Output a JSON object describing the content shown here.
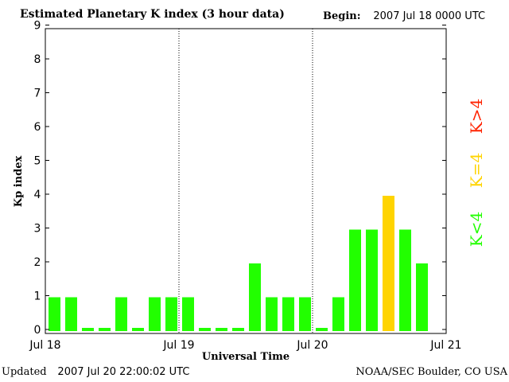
{
  "header": {
    "title": "Estimated Planetary K index (3 hour data)",
    "begin_label": "Begin:",
    "begin_value": "2007 Jul 18 0000 UTC"
  },
  "footer": {
    "updated_label": "Updated",
    "updated_value": "2007 Jul 20 22:00:02 UTC",
    "credit": "NOAA/SEC Boulder, CO USA"
  },
  "colors": {
    "low": "#22ff00",
    "storm_threshold": "#ffd400",
    "high": "#ff2200",
    "frame": "#000000"
  },
  "legend": [
    {
      "label": "K<4",
      "color": "#22ff00"
    },
    {
      "label": "K=4",
      "color": "#ffd400"
    },
    {
      "label": "K>4",
      "color": "#ff2200"
    }
  ],
  "chart_data": {
    "type": "bar",
    "title": "Estimated Planetary K index (3 hour data)",
    "xlabel": "Universal Time",
    "ylabel": "Kp index",
    "ylim": [
      0,
      9
    ],
    "yticks": [
      0,
      1,
      2,
      3,
      4,
      5,
      6,
      7,
      8,
      9
    ],
    "xticks": [
      "Jul 18",
      "Jul 19",
      "Jul 20",
      "Jul 21"
    ],
    "bins_per_day": 8,
    "grid": "vertical dotted day separators",
    "legend_position": "right",
    "values": [
      1,
      1,
      0,
      0,
      1,
      0,
      1,
      1,
      1,
      0,
      0,
      0,
      2,
      1,
      1,
      1,
      0,
      1,
      3,
      3,
      4,
      3,
      2
    ]
  }
}
